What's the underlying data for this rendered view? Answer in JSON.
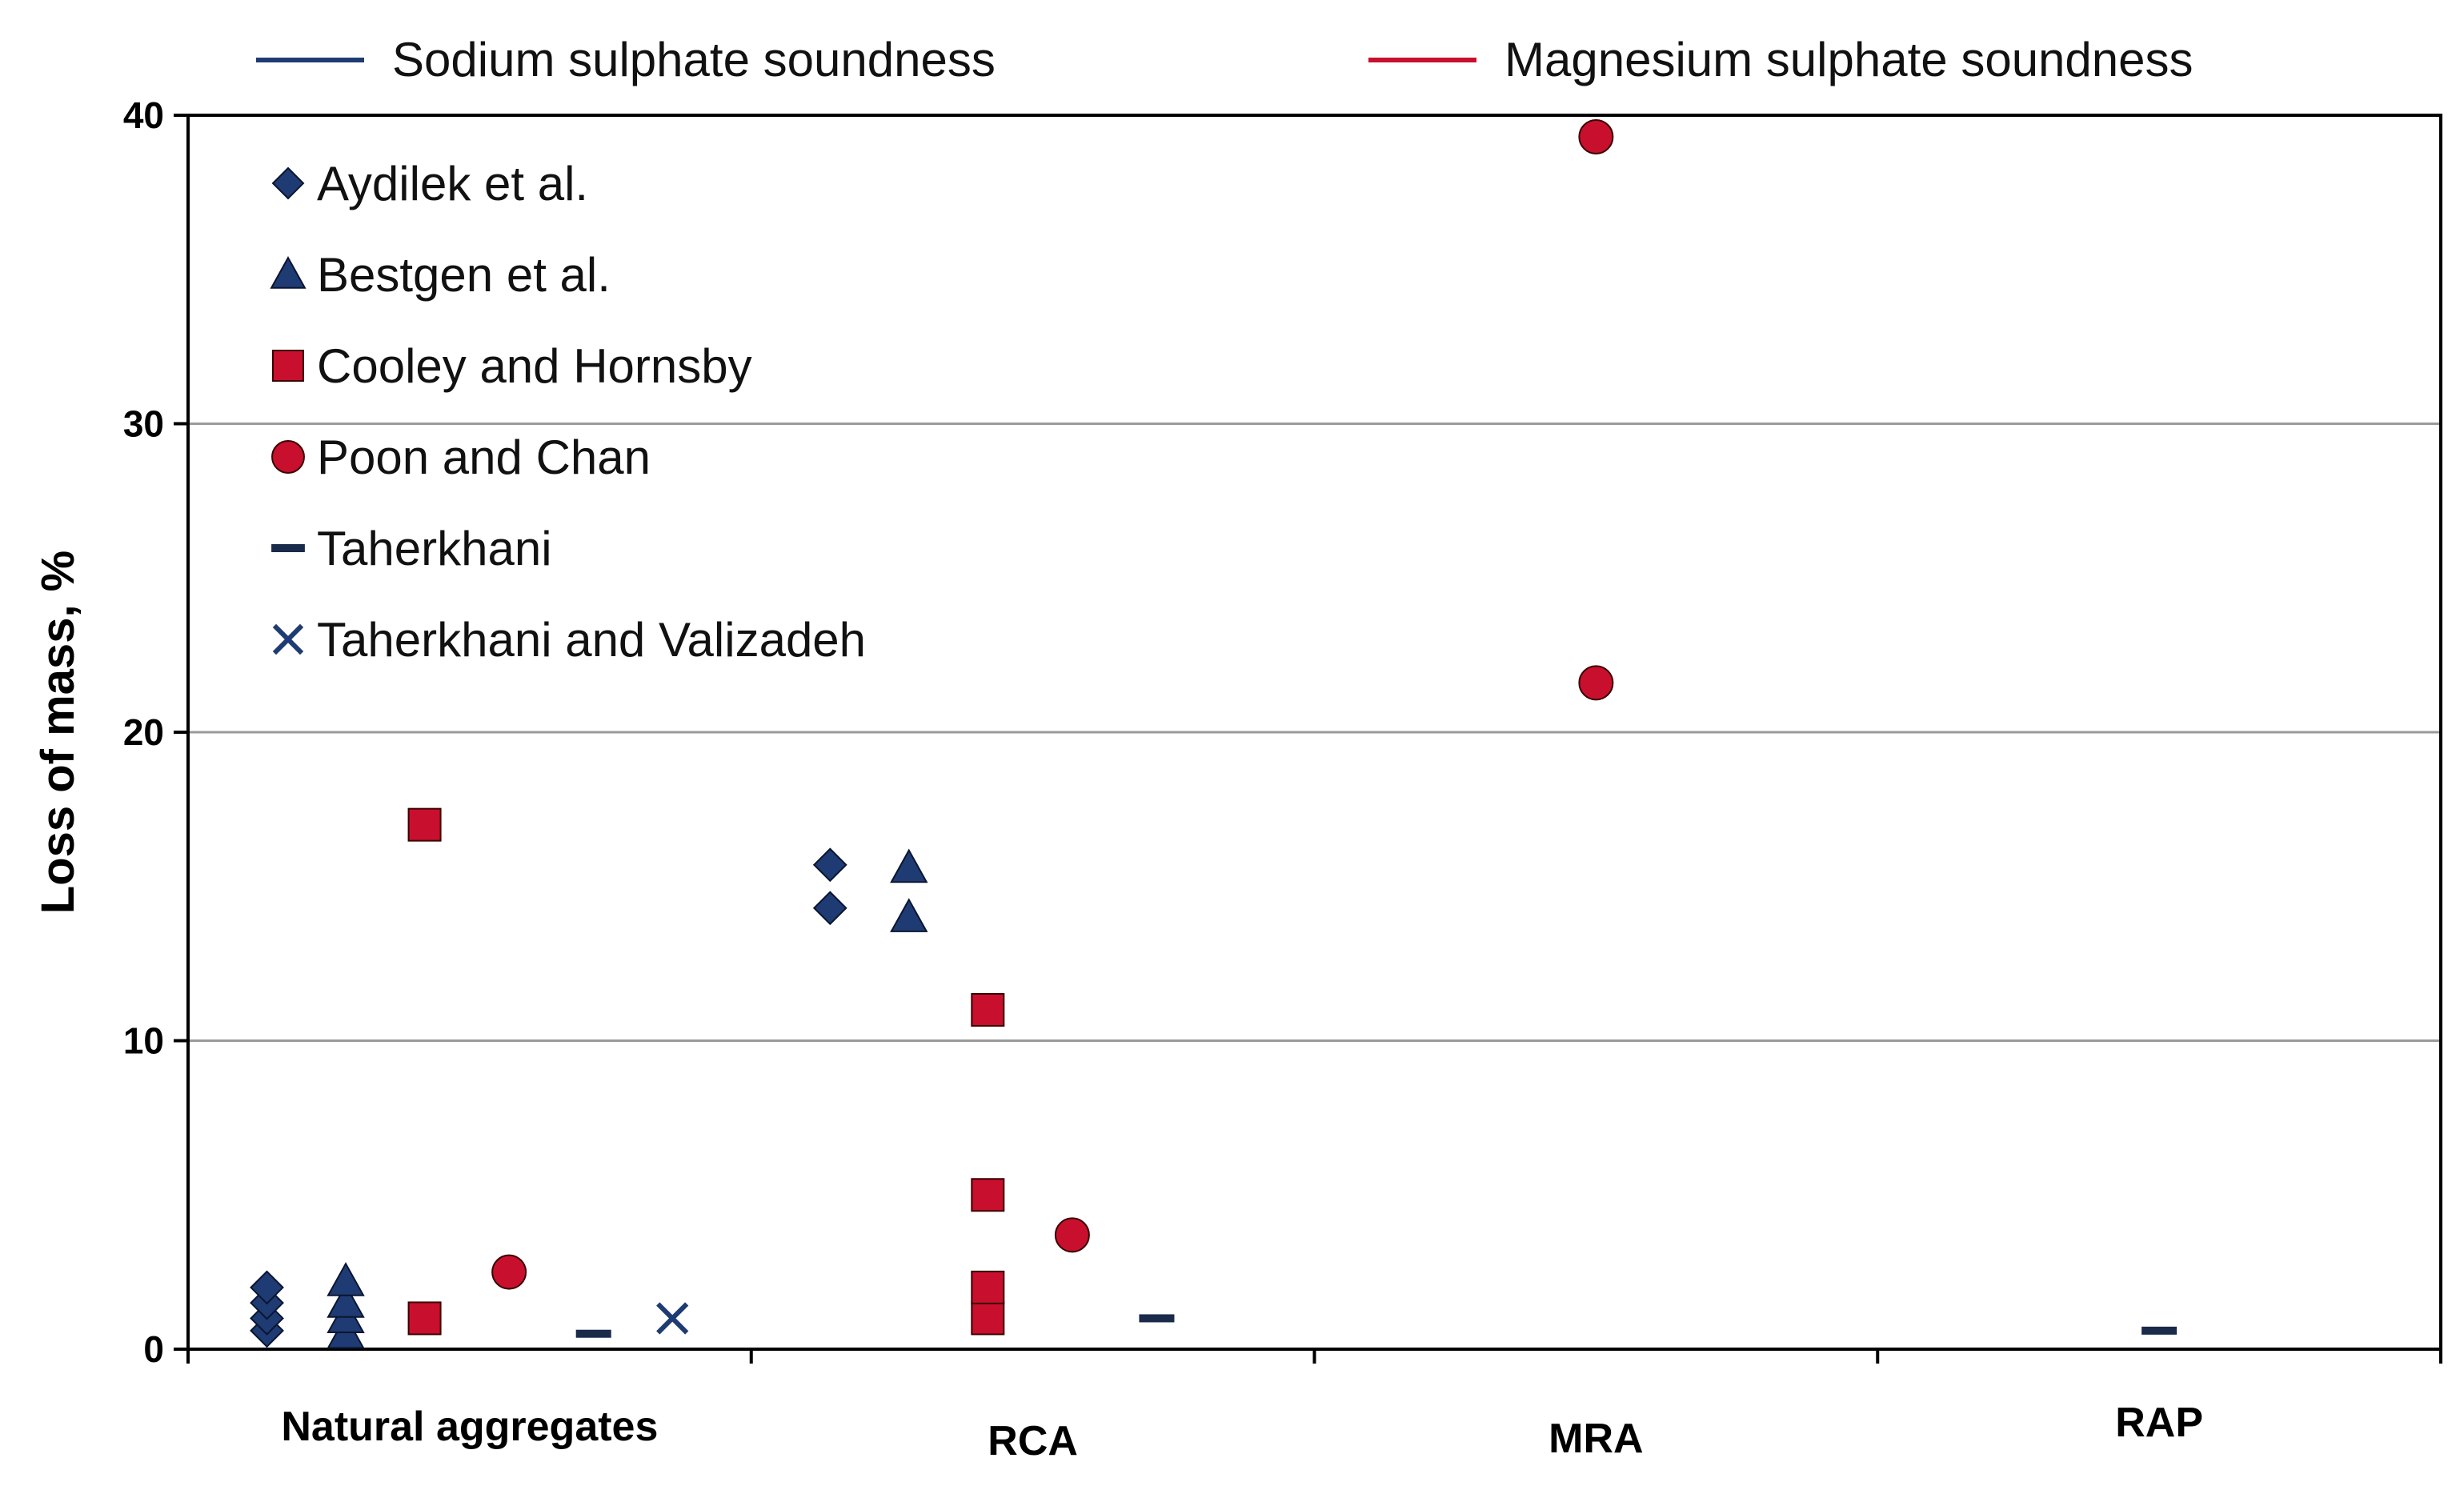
{
  "chart_data": {
    "type": "scatter",
    "title": "",
    "xlabel": "",
    "ylabel": "Loss of mass, %",
    "ylim": [
      0,
      40
    ],
    "yticks": [
      0,
      10,
      20,
      30,
      40
    ],
    "grid": true,
    "categories": [
      "Natural aggregates",
      "RCA",
      "MRA",
      "RAP"
    ],
    "test_legend": [
      {
        "name": "Sodium sulphate soundness",
        "color": "#1f3b73"
      },
      {
        "name": "Magnesium sulphate soundness",
        "color": "#c8102e"
      }
    ],
    "series": [
      {
        "name": "Aydilek et al.",
        "marker": "diamond",
        "color": "#1f3b73",
        "slot": 0,
        "points": [
          {
            "category": "Natural aggregates",
            "y": 0.6
          },
          {
            "category": "Natural aggregates",
            "y": 1.0
          },
          {
            "category": "Natural aggregates",
            "y": 1.5
          },
          {
            "category": "Natural aggregates",
            "y": 2.0
          },
          {
            "category": "RCA",
            "y": 14.3
          },
          {
            "category": "RCA",
            "y": 15.7
          }
        ]
      },
      {
        "name": "Bestgen et al.",
        "marker": "triangle",
        "color": "#1f3b73",
        "slot": 1,
        "points": [
          {
            "category": "Natural aggregates",
            "y": 0.5
          },
          {
            "category": "Natural aggregates",
            "y": 1.0
          },
          {
            "category": "Natural aggregates",
            "y": 1.5
          },
          {
            "category": "Natural aggregates",
            "y": 2.2
          },
          {
            "category": "RCA",
            "y": 14.0
          },
          {
            "category": "RCA",
            "y": 15.6
          }
        ]
      },
      {
        "name": "Cooley and Hornsby",
        "marker": "square",
        "color": "#c8102e",
        "slot": 2,
        "points": [
          {
            "category": "Natural aggregates",
            "y": 1.0
          },
          {
            "category": "Natural aggregates",
            "y": 17.0
          },
          {
            "category": "RCA",
            "y": 1.0
          },
          {
            "category": "RCA",
            "y": 2.0
          },
          {
            "category": "RCA",
            "y": 5.0
          },
          {
            "category": "RCA",
            "y": 11.0
          }
        ]
      },
      {
        "name": "Poon and Chan",
        "marker": "circle",
        "color": "#c8102e",
        "slot": 3,
        "points": [
          {
            "category": "Natural aggregates",
            "y": 2.5
          },
          {
            "category": "RCA",
            "y": 3.7
          },
          {
            "category": "MRA",
            "y": 21.6
          },
          {
            "category": "MRA",
            "y": 39.3
          }
        ]
      },
      {
        "name": "Taherkhani",
        "marker": "dash",
        "color": "#1a2a4a",
        "slot": 4,
        "points": [
          {
            "category": "Natural aggregates",
            "y": 0.5
          },
          {
            "category": "RCA",
            "y": 1.0
          },
          {
            "category": "RAP",
            "y": 0.6
          }
        ]
      },
      {
        "name": "Taherkhani and Valizadeh",
        "marker": "x",
        "color": "#1f3b73",
        "slot": 5,
        "points": [
          {
            "category": "Natural aggregates",
            "y": 1.0
          }
        ]
      }
    ]
  }
}
